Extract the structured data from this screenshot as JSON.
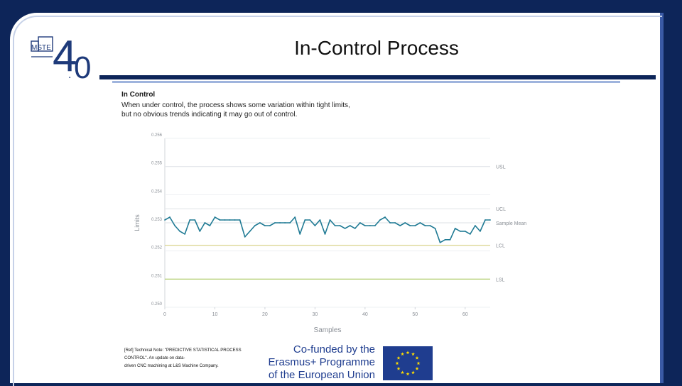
{
  "slide": {
    "title": "In-Control Process"
  },
  "figure": {
    "heading": "In Control",
    "description_lines": [
      "When under control, the process shows some variation within tight limits,",
      "but no obvious trends indicating it may go out of control."
    ]
  },
  "chart_data": {
    "type": "line",
    "xlabel": "Samples",
    "ylabel": "Limits",
    "xlim": [
      0,
      65
    ],
    "ylim": [
      0.25,
      0.256
    ],
    "x_ticks": [
      "0",
      "10",
      "20",
      "30",
      "40",
      "50",
      "60"
    ],
    "y_ticks": [
      "0.250",
      "0.251",
      "0.252",
      "0.253",
      "0.254",
      "0.255",
      "0.256"
    ],
    "grid": true,
    "reference_lines": [
      {
        "label": "USL",
        "value": 0.255,
        "color": "#e3e6ea"
      },
      {
        "label": "UCL",
        "value": 0.2535,
        "color": "#e3e6ea"
      },
      {
        "label": "Sample Mean",
        "value": 0.253,
        "color": "#e3e6ea"
      },
      {
        "label": "LCL",
        "value": 0.2522,
        "color": "#d9d28a"
      },
      {
        "label": "LSL",
        "value": 0.251,
        "color": "#a9c95a"
      }
    ],
    "series": [
      {
        "color": "#1f7a94",
        "x": [
          0,
          1,
          2,
          3,
          4,
          5,
          6,
          7,
          8,
          9,
          10,
          11,
          12,
          13,
          14,
          15,
          16,
          17,
          18,
          19,
          20,
          21,
          22,
          23,
          24,
          25,
          26,
          27,
          28,
          29,
          30,
          31,
          32,
          33,
          34,
          35,
          36,
          37,
          38,
          39,
          40,
          41,
          42,
          43,
          44,
          45,
          46,
          47,
          48,
          49,
          50,
          51,
          52,
          53,
          54,
          55,
          56,
          57,
          58,
          59,
          60,
          61,
          62,
          63,
          64,
          65
        ],
        "y": [
          0.2531,
          0.2532,
          0.2529,
          0.2527,
          0.2526,
          0.2531,
          0.2531,
          0.2527,
          0.253,
          0.2529,
          0.2532,
          0.2531,
          0.2531,
          0.2531,
          0.2531,
          0.2531,
          0.2525,
          0.2527,
          0.2529,
          0.253,
          0.2529,
          0.2529,
          0.253,
          0.253,
          0.253,
          0.253,
          0.2532,
          0.2526,
          0.2531,
          0.2531,
          0.2529,
          0.2531,
          0.2526,
          0.2531,
          0.2529,
          0.2529,
          0.2528,
          0.2529,
          0.2528,
          0.253,
          0.2529,
          0.2529,
          0.2529,
          0.2531,
          0.2532,
          0.253,
          0.253,
          0.2529,
          0.253,
          0.2529,
          0.2529,
          0.253,
          0.2529,
          0.2529,
          0.2528,
          0.2523,
          0.2524,
          0.2524,
          0.2528,
          0.2527,
          0.2527,
          0.2526,
          0.2529,
          0.2527,
          0.2531,
          0.2531
        ]
      }
    ]
  },
  "reference": {
    "lines": [
      "[Ref] Technical Note: \"PREDICTIVE STATISTICAL PROCESS CONTROL\". An update on data-",
      "driven CNC machining at L&S Machine Company."
    ]
  },
  "funding": {
    "lines": [
      "Co-funded by the",
      "Erasmus+ Programme",
      "of the European Union"
    ]
  },
  "logo": {
    "letters": "MSTE",
    "version_digit_left": "4",
    "version_dot": ".",
    "version_digit_right": "0"
  },
  "colors": {
    "navy": "#0d2559",
    "series": "#1f7a94",
    "eu_blue": "#1f3d8f",
    "eu_star": "#ffdd00"
  }
}
